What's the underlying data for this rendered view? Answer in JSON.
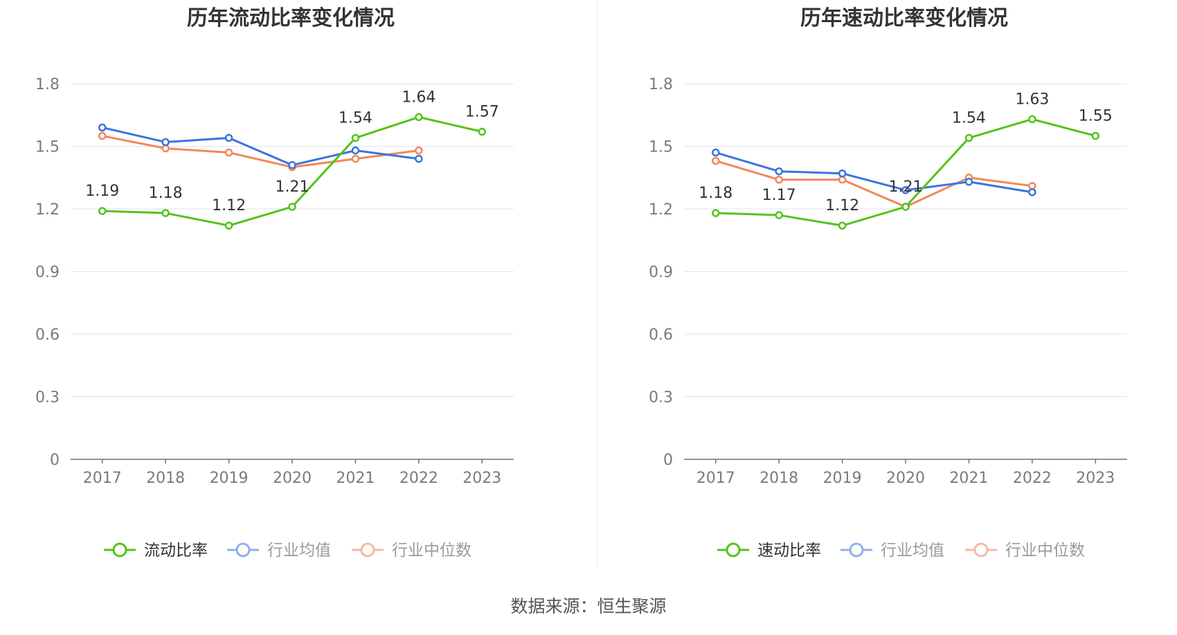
{
  "source_text": "数据来源：恒生聚源",
  "chart_data": [
    {
      "type": "line",
      "title": "历年流动比率变化情况",
      "categories": [
        "2017",
        "2018",
        "2019",
        "2020",
        "2021",
        "2022",
        "2023"
      ],
      "ylim": [
        0,
        1.8
      ],
      "yticks": [
        0,
        0.3,
        0.6,
        0.9,
        1.2,
        1.5,
        1.8
      ],
      "grid": true,
      "legend_position": "bottom",
      "series": [
        {
          "name": "流动比率",
          "color": "#52c41a",
          "labeled": true,
          "values": [
            1.19,
            1.18,
            1.12,
            1.21,
            1.54,
            1.64,
            1.57
          ]
        },
        {
          "name": "行业均值",
          "color": "#3b73e0",
          "labeled": false,
          "values": [
            1.59,
            1.52,
            1.54,
            1.41,
            1.48,
            1.44,
            null
          ]
        },
        {
          "name": "行业中位数",
          "color": "#f08858",
          "labeled": false,
          "values": [
            1.55,
            1.49,
            1.47,
            1.4,
            1.44,
            1.48,
            null
          ]
        }
      ]
    },
    {
      "type": "line",
      "title": "历年速动比率变化情况",
      "categories": [
        "2017",
        "2018",
        "2019",
        "2020",
        "2021",
        "2022",
        "2023"
      ],
      "ylim": [
        0,
        1.8
      ],
      "yticks": [
        0,
        0.3,
        0.6,
        0.9,
        1.2,
        1.5,
        1.8
      ],
      "grid": true,
      "legend_position": "bottom",
      "series": [
        {
          "name": "速动比率",
          "color": "#52c41a",
          "labeled": true,
          "values": [
            1.18,
            1.17,
            1.12,
            1.21,
            1.54,
            1.63,
            1.55
          ]
        },
        {
          "name": "行业均值",
          "color": "#3b73e0",
          "labeled": false,
          "values": [
            1.47,
            1.38,
            1.37,
            1.29,
            1.33,
            1.28,
            null
          ]
        },
        {
          "name": "行业中位数",
          "color": "#f08858",
          "labeled": false,
          "values": [
            1.43,
            1.34,
            1.34,
            1.21,
            1.35,
            1.31,
            null
          ]
        }
      ]
    }
  ]
}
